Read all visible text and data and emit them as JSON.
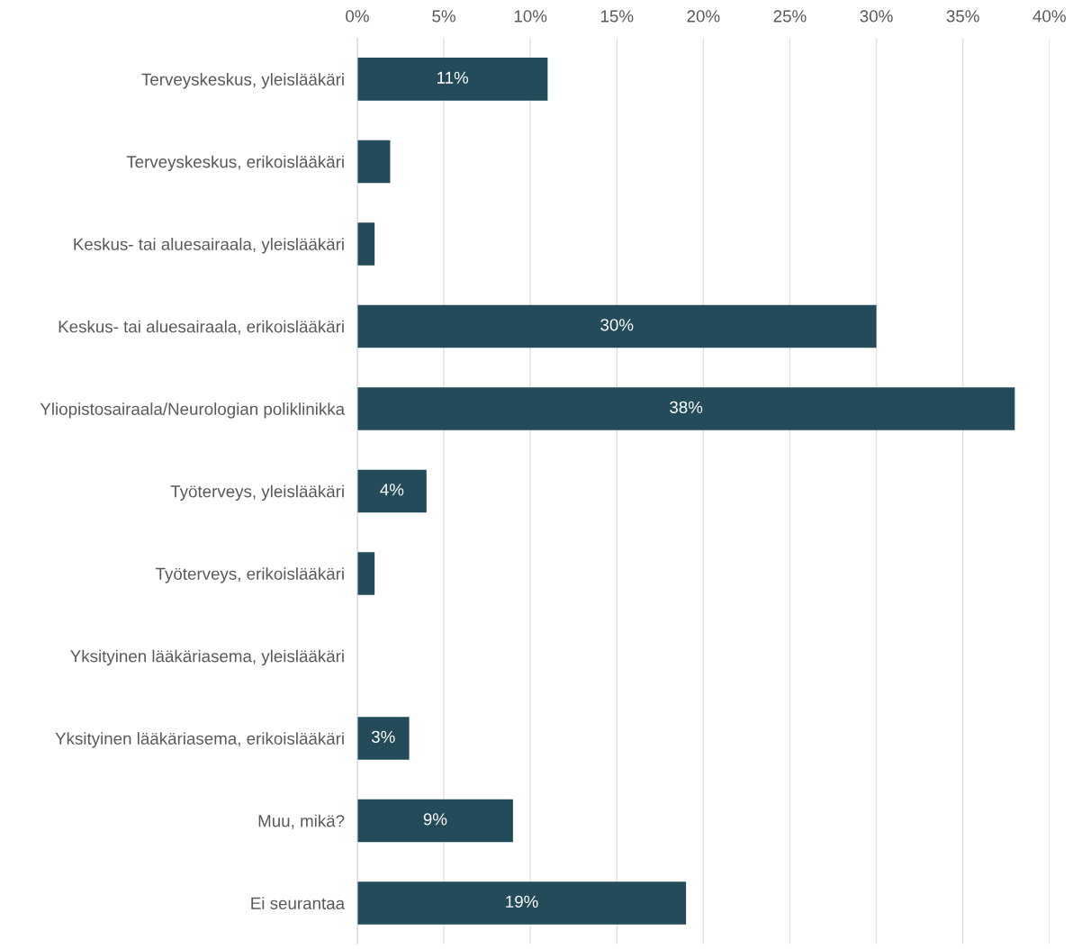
{
  "chart_data": {
    "type": "bar",
    "orientation": "horizontal",
    "categories": [
      "Terveyskeskus, yleislääkäri",
      "Terveyskeskus, erikoislääkäri",
      "Keskus- tai aluesairaala, yleislääkäri",
      "Keskus- tai aluesairaala, erikoislääkäri",
      "Yliopistosairaala/Neurologian poliklinikka",
      "Työterveys, yleislääkäri",
      "Työterveys, erikoislääkäri",
      "Yksityinen lääkäriasema, yleislääkäri",
      "Yksityinen lääkäriasema, erikoislääkäri",
      "Muu, mikä?",
      "Ei seurantaa"
    ],
    "values": [
      11,
      1.9,
      1,
      30,
      38,
      4,
      1,
      0,
      3,
      9,
      19
    ],
    "value_labels": [
      "11%",
      null,
      null,
      "30%",
      "38%",
      "4%",
      null,
      null,
      "3%",
      "9%",
      "19%"
    ],
    "color": "#234b5a",
    "xlim": [
      0,
      40
    ],
    "xticks": [
      {
        "value": 0,
        "label": "0%"
      },
      {
        "value": 5,
        "label": "5%"
      },
      {
        "value": 10,
        "label": "10%"
      },
      {
        "value": 15,
        "label": "15%"
      },
      {
        "value": 20,
        "label": "20%"
      },
      {
        "value": 25,
        "label": "25%"
      },
      {
        "value": 30,
        "label": "30%"
      },
      {
        "value": 35,
        "label": "35%"
      },
      {
        "value": 40,
        "label": "40%"
      }
    ],
    "grid": "x",
    "legend": false
  }
}
